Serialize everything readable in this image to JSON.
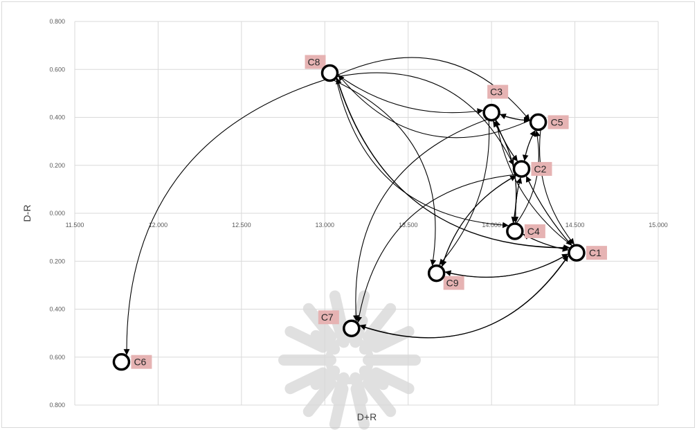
{
  "chart_data": {
    "type": "scatter",
    "title": "",
    "xlabel": "D+R",
    "ylabel": "D-R",
    "xlim": [
      11.5,
      15.0
    ],
    "ylim": [
      -0.8,
      0.8
    ],
    "grid": true,
    "x_ticks": [
      "11.500",
      "12.000",
      "12.500",
      "13.000",
      "13.500",
      "14.000",
      "14.500",
      "15.000"
    ],
    "x_tick_values": [
      11.5,
      12.0,
      12.5,
      13.0,
      13.5,
      14.0,
      14.5,
      15.0
    ],
    "y_ticks": [
      "0.800",
      "0.600",
      "0.400",
      "0.200",
      "0.000",
      "0.200",
      "0.400",
      "0.600",
      "0.800"
    ],
    "y_tick_values": [
      0.8,
      0.6,
      0.4,
      0.2,
      0.0,
      -0.2,
      -0.4,
      -0.6,
      -0.8
    ],
    "points": [
      {
        "label": "C1",
        "x": 14.51,
        "y": -0.165
      },
      {
        "label": "C2",
        "x": 14.18,
        "y": 0.185
      },
      {
        "label": "C3",
        "x": 14.0,
        "y": 0.42
      },
      {
        "label": "C4",
        "x": 14.14,
        "y": -0.075
      },
      {
        "label": "C5",
        "x": 14.28,
        "y": 0.38
      },
      {
        "label": "C6",
        "x": 11.78,
        "y": -0.62
      },
      {
        "label": "C7",
        "x": 13.16,
        "y": -0.48
      },
      {
        "label": "C8",
        "x": 13.03,
        "y": 0.585
      },
      {
        "label": "C9",
        "x": 13.67,
        "y": -0.25
      }
    ],
    "edges": [
      {
        "from": "C8",
        "to": "C3"
      },
      {
        "from": "C8",
        "to": "C2"
      },
      {
        "from": "C8",
        "to": "C4"
      },
      {
        "from": "C8",
        "to": "C5"
      },
      {
        "from": "C8",
        "to": "C6"
      },
      {
        "from": "C8",
        "to": "C9"
      },
      {
        "from": "C8",
        "to": "C1"
      },
      {
        "from": "C5",
        "to": "C8"
      },
      {
        "from": "C3",
        "to": "C5"
      },
      {
        "from": "C5",
        "to": "C3"
      },
      {
        "from": "C3",
        "to": "C2"
      },
      {
        "from": "C2",
        "to": "C3"
      },
      {
        "from": "C5",
        "to": "C2"
      },
      {
        "from": "C2",
        "to": "C5"
      },
      {
        "from": "C2",
        "to": "C4"
      },
      {
        "from": "C4",
        "to": "C2"
      },
      {
        "from": "C2",
        "to": "C9"
      },
      {
        "from": "C9",
        "to": "C2"
      },
      {
        "from": "C2",
        "to": "C1"
      },
      {
        "from": "C1",
        "to": "C2"
      },
      {
        "from": "C4",
        "to": "C1"
      },
      {
        "from": "C1",
        "to": "C4"
      },
      {
        "from": "C9",
        "to": "C1"
      },
      {
        "from": "C1",
        "to": "C9"
      },
      {
        "from": "C7",
        "to": "C1"
      },
      {
        "from": "C1",
        "to": "C7"
      },
      {
        "from": "C5",
        "to": "C1"
      },
      {
        "from": "C1",
        "to": "C3"
      },
      {
        "from": "C4",
        "to": "C3"
      },
      {
        "from": "C3",
        "to": "C4"
      },
      {
        "from": "C3",
        "to": "C7"
      },
      {
        "from": "C3",
        "to": "C9"
      },
      {
        "from": "C2",
        "to": "C7"
      },
      {
        "from": "C1",
        "to": "C8"
      },
      {
        "from": "C4",
        "to": "C5"
      }
    ],
    "colors": {
      "gridline": "#d9d9d9",
      "edge": "#000000",
      "node_fill": "#ffffff",
      "node_stroke": "#000000",
      "label_bg": "#e6b3b3",
      "watermark": "#c8c8c8"
    }
  }
}
